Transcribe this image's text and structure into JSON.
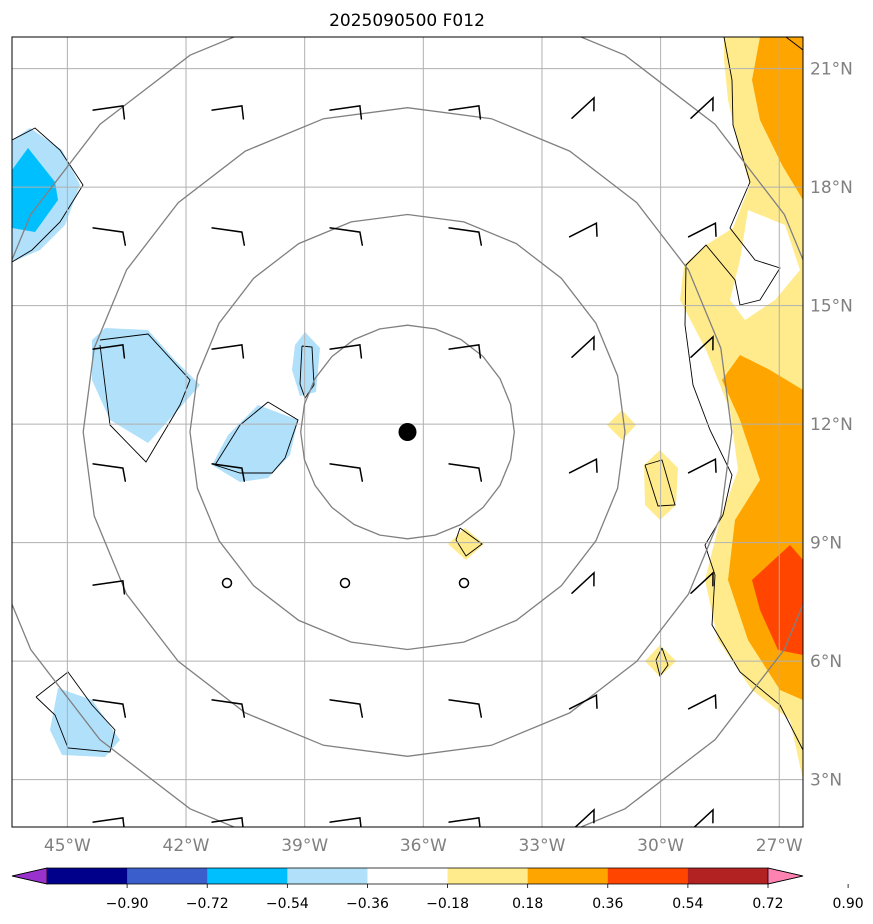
{
  "figure": {
    "title": "2025090500 F012"
  },
  "map": {
    "lon_range": [
      -46.4,
      -26.4
    ],
    "lat_range": [
      1.8,
      21.8
    ],
    "lon_ticks": [
      -45,
      -42,
      -39,
      -36,
      -33,
      -30,
      -27
    ],
    "lat_ticks": [
      3,
      6,
      9,
      12,
      15,
      18,
      21
    ],
    "lon_tick_labels": [
      "45°W",
      "42°W",
      "39°W",
      "36°W",
      "33°W",
      "30°W",
      "27°W"
    ],
    "lat_tick_labels": [
      "3°N",
      "6°N",
      "9°N",
      "12°N",
      "15°N",
      "18°N",
      "21°N"
    ],
    "storm_center": {
      "lon": -36.4,
      "lat": 11.8
    },
    "range_ring_radii_deg": [
      2.7,
      5.5,
      8.2,
      11.0
    ],
    "colors": {
      "gridline": "#b0b0b0",
      "ring": "#808080",
      "contour_line": "#000000",
      "storm_marker": "#000000"
    }
  },
  "colorbar": {
    "tick_labels": [
      "−0.90",
      "−0.72",
      "−0.54",
      "−0.36",
      "−0.18",
      "0.18",
      "0.36",
      "0.54",
      "0.72",
      "0.90"
    ],
    "levels": [
      -0.9,
      -0.72,
      -0.54,
      -0.36,
      -0.18,
      0.18,
      0.36,
      0.54,
      0.72,
      0.9
    ],
    "colors": [
      "#9932cc",
      "#00008b",
      "#3a5fcd",
      "#00bfff",
      "#b0e0fa",
      "#ffffff",
      "#ffeb8c",
      "#ffa500",
      "#ff4500",
      "#b22222",
      "#ff83b0"
    ]
  }
}
